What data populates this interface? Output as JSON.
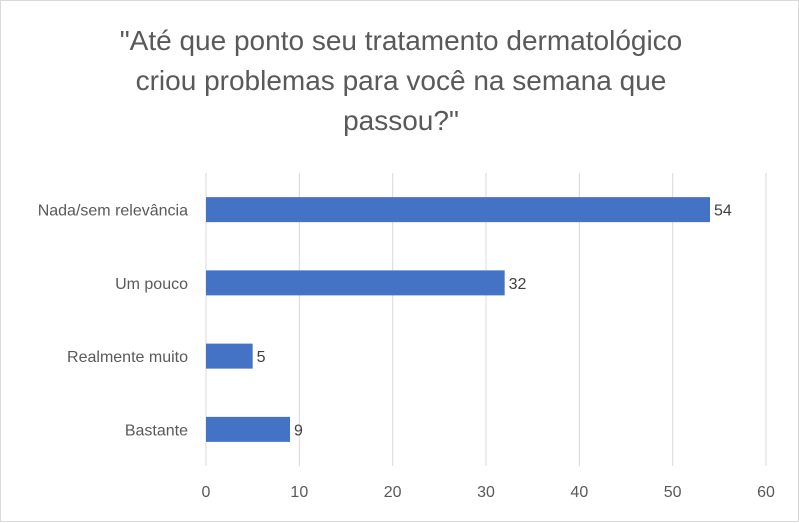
{
  "chart_data": {
    "type": "bar",
    "orientation": "horizontal",
    "title": "\"Até que ponto seu tratamento dermatológico criou problemas para você na semana que passou?\"",
    "categories": [
      "Nada/sem relevância",
      "Um pouco",
      "Realmente muito",
      "Bastante"
    ],
    "values": [
      54,
      32,
      5,
      9
    ],
    "xlim": [
      0,
      60
    ],
    "xticks": [
      0,
      10,
      20,
      30,
      40,
      50,
      60
    ],
    "xlabel": "",
    "ylabel": "",
    "grid": true,
    "legend": "none",
    "bar_color": "#4472c4"
  }
}
